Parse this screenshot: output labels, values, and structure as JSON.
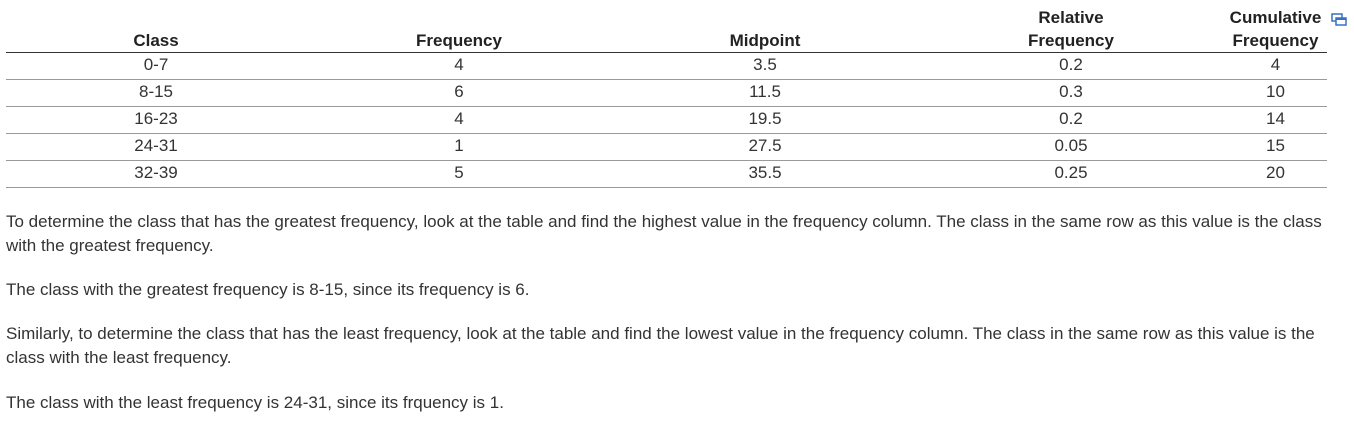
{
  "table": {
    "headers": {
      "class": "Class",
      "frequency": "Frequency",
      "midpoint": "Midpoint",
      "relative_line1": "Relative",
      "relative_line2": "Frequency",
      "cumulative_line1": "Cumulative",
      "cumulative_line2": "Frequency"
    },
    "rows": [
      {
        "class": "0-7",
        "frequency": "4",
        "midpoint": "3.5",
        "relative": "0.2",
        "cumulative": "4"
      },
      {
        "class": "8-15",
        "frequency": "6",
        "midpoint": "11.5",
        "relative": "0.3",
        "cumulative": "10"
      },
      {
        "class": "16-23",
        "frequency": "4",
        "midpoint": "19.5",
        "relative": "0.2",
        "cumulative": "14"
      },
      {
        "class": "24-31",
        "frequency": "1",
        "midpoint": "27.5",
        "relative": "0.05",
        "cumulative": "15"
      },
      {
        "class": "32-39",
        "frequency": "5",
        "midpoint": "35.5",
        "relative": "0.25",
        "cumulative": "20"
      }
    ],
    "popout_icon": "popout-window-icon",
    "icon_color": "#3a6fc4"
  },
  "explanation": {
    "p1": "To determine the class that has the greatest frequency, look at the table and find the highest value in the frequency column. The class in the same row as this value is the class with the greatest frequency.",
    "p2": "The class with the greatest frequency is 8-15, since its frequency is 6.",
    "p3": "Similarly, to determine the class that has the least frequency, look at the table and find the lowest value in the frequency column. The class in the same row as this value is the class with the least frequency.",
    "p4": "The class with the least frequency is 24-31, since its frquency is 1."
  }
}
